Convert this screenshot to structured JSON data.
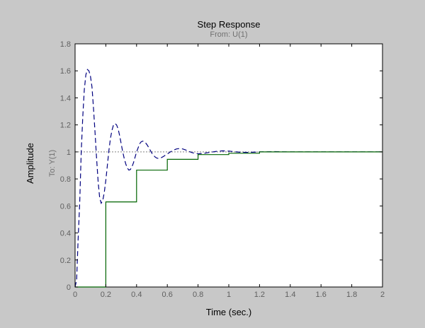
{
  "chart_data": {
    "type": "line",
    "title": "Step Response",
    "subtitle": "From: U(1)",
    "xlabel": "Time (sec.)",
    "ylabel": "Amplitude",
    "output_label": "To: Y(1)",
    "xlim": [
      0,
      2
    ],
    "ylim": [
      0,
      1.8
    ],
    "xticks": [
      "0",
      "0.2",
      "0.4",
      "0.6",
      "0.8",
      "1",
      "1.2",
      "1.4",
      "1.6",
      "1.8",
      "2"
    ],
    "yticks": [
      "0",
      "0.2",
      "0.4",
      "0.6",
      "0.8",
      "1",
      "1.2",
      "1.4",
      "1.6",
      "1.8"
    ],
    "grid": false,
    "reference_line": {
      "y": 1,
      "style": "dotted",
      "color": "#808080"
    },
    "series": [
      {
        "style": "dashed",
        "color": "#00007f",
        "x": [
          0,
          0.01,
          0.02,
          0.03,
          0.04,
          0.05,
          0.06,
          0.07,
          0.08,
          0.09,
          0.1,
          0.11,
          0.12,
          0.13,
          0.14,
          0.15,
          0.16,
          0.17,
          0.18,
          0.19,
          0.2,
          0.21,
          0.22,
          0.23,
          0.24,
          0.25,
          0.26,
          0.27,
          0.28,
          0.29,
          0.3,
          0.31,
          0.32,
          0.33,
          0.34,
          0.35,
          0.36,
          0.37,
          0.38,
          0.39,
          0.4,
          0.41,
          0.42,
          0.43,
          0.44,
          0.45,
          0.46,
          0.47,
          0.48,
          0.49,
          0.5,
          0.51,
          0.52,
          0.53,
          0.54,
          0.55,
          0.56,
          0.57,
          0.58,
          0.59,
          0.6,
          0.62,
          0.64,
          0.66,
          0.68,
          0.7,
          0.72,
          0.74,
          0.76,
          0.78,
          0.8,
          0.84,
          0.88,
          0.92,
          0.96,
          1.0,
          1.04,
          1.08,
          1.12,
          1.16,
          1.2,
          1.3,
          1.4,
          1.6,
          1.8,
          2.0
        ],
        "y": [
          0,
          0.05,
          0.36,
          0.62,
          1.0,
          1.26,
          1.46,
          1.57,
          1.61,
          1.6,
          1.56,
          1.48,
          1.32,
          1.14,
          0.95,
          0.78,
          0.66,
          0.62,
          0.64,
          0.7,
          0.79,
          0.9,
          1.01,
          1.1,
          1.16,
          1.2,
          1.21,
          1.2,
          1.17,
          1.12,
          1.06,
          1.0,
          0.95,
          0.91,
          0.88,
          0.865,
          0.87,
          0.89,
          0.92,
          0.96,
          1.0,
          1.03,
          1.06,
          1.075,
          1.08,
          1.075,
          1.065,
          1.05,
          1.03,
          1.01,
          0.99,
          0.975,
          0.963,
          0.955,
          0.952,
          0.953,
          0.957,
          0.963,
          0.97,
          0.978,
          0.985,
          1.0,
          1.013,
          1.022,
          1.025,
          1.022,
          1.014,
          1.004,
          0.995,
          0.989,
          0.986,
          0.99,
          0.997,
          1.004,
          1.008,
          1.006,
          1.001,
          0.997,
          0.996,
          0.998,
          1.0,
          1.002,
          1.0,
          1.0,
          1.0,
          1.0
        ]
      },
      {
        "style": "solid",
        "color": "#006400",
        "step": true,
        "x": [
          0,
          0.2,
          0.4,
          0.6,
          0.8,
          1.0,
          1.2,
          2.0
        ],
        "y": [
          0,
          0.63,
          0.865,
          0.945,
          0.98,
          0.99,
          1.0,
          1.0
        ]
      }
    ]
  }
}
